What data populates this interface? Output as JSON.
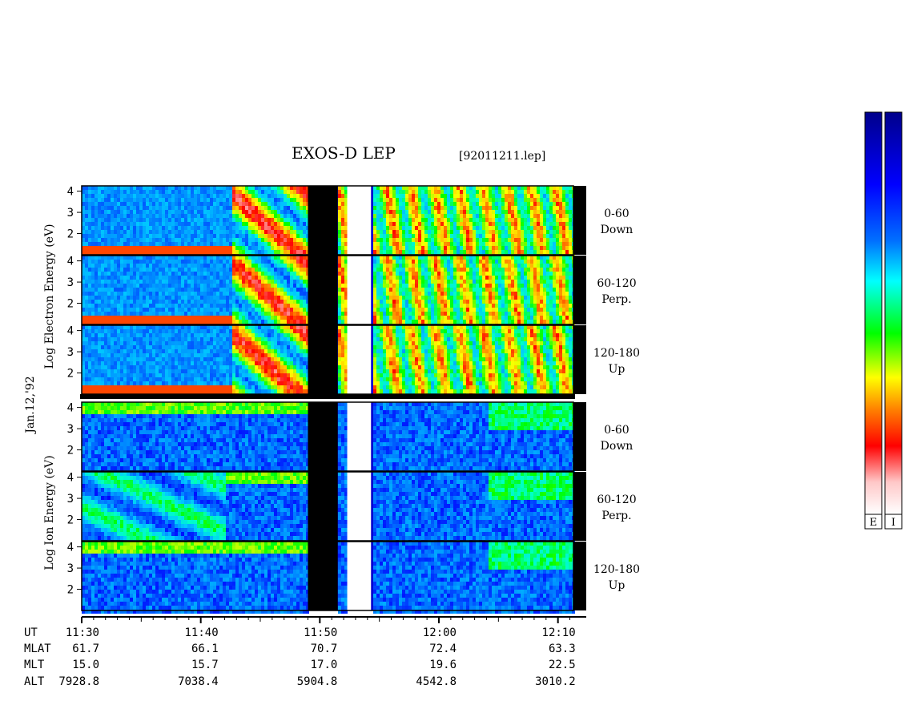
{
  "title": "EXOS-D LEP",
  "file_label": "[92011211.lep]",
  "date_label": "Jan.12,'92",
  "electron_ylabel": "Log Electron Energy (eV)",
  "ion_ylabel": "Log Ion Energy (eV)",
  "colorbar_labels": [
    "E",
    "I"
  ],
  "chart_data": {
    "type": "heatmap",
    "x_time": {
      "start_min": 0,
      "end_min": 41.3,
      "ticks": [
        {
          "t": 0,
          "label": "11:30"
        },
        {
          "t": 10,
          "label": "11:40"
        },
        {
          "t": 20,
          "label": "11:50"
        },
        {
          "t": 30,
          "label": "12:00"
        },
        {
          "t": 40,
          "label": "12:10"
        }
      ]
    },
    "y_ticks": [
      "4",
      "3",
      "2"
    ],
    "panels": [
      {
        "group": "electron",
        "label_top": "0-60",
        "label_bottom": "Down"
      },
      {
        "group": "electron",
        "label_top": "60-120",
        "label_bottom": "Perp."
      },
      {
        "group": "electron",
        "label_top": "120-180",
        "label_bottom": "Up"
      },
      {
        "group": "ion",
        "label_top": "0-60",
        "label_bottom": "Down"
      },
      {
        "group": "ion",
        "label_top": "60-120",
        "label_bottom": "Perp."
      },
      {
        "group": "ion",
        "label_top": "120-180",
        "label_bottom": "Up"
      }
    ],
    "data_gaps": [
      {
        "type": "black",
        "from": 19.0,
        "to": 21.5
      },
      {
        "type": "white",
        "from": 22.3,
        "to": 24.3
      }
    ],
    "ephemeris": {
      "row_labels": [
        "UT",
        "MLAT",
        "MLT",
        "ALT"
      ],
      "columns": [
        {
          "UT": "11:30",
          "MLAT": "61.7",
          "MLT": "15.0",
          "ALT": "7928.8"
        },
        {
          "UT": "11:40",
          "MLAT": "66.1",
          "MLT": "15.7",
          "ALT": "7038.4"
        },
        {
          "UT": "11:50",
          "MLAT": "70.7",
          "MLT": "17.0",
          "ALT": "5904.8"
        },
        {
          "UT": "12:00",
          "MLAT": "72.4",
          "MLT": "19.6",
          "ALT": "4542.8"
        },
        {
          "UT": "12:10",
          "MLAT": "63.3",
          "MLT": "22.5",
          "ALT": "3010.2"
        }
      ]
    },
    "colorbar_colors": [
      "#00008b",
      "#0000ff",
      "#0080ff",
      "#00ffff",
      "#00ff00",
      "#ffff00",
      "#ff8000",
      "#ff0000",
      "#ffc0c0",
      "#ffffff"
    ]
  }
}
